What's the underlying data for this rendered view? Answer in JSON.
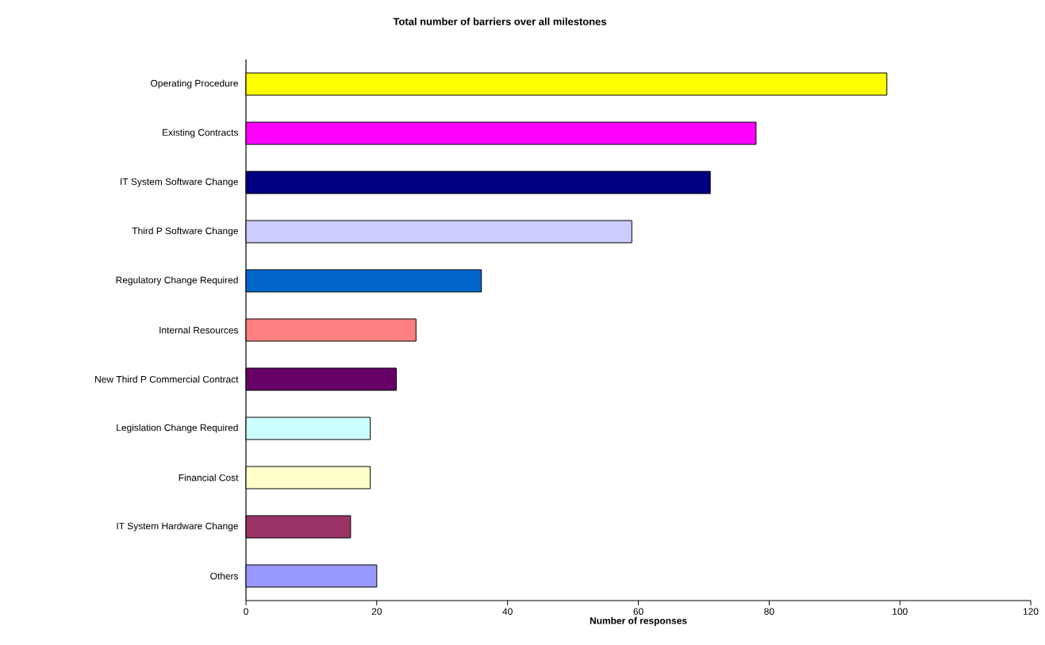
{
  "chart_data": {
    "type": "bar",
    "orientation": "horizontal",
    "title": "Total number of barriers over all milestones",
    "xlabel": "Number of responses",
    "categories": [
      "Operating Procedure",
      "Existing Contracts",
      "IT System Software Change",
      "Third P Software Change",
      "Regulatory Change Required",
      "Internal Resources",
      "New Third P Commercial Contract",
      "Legislation Change Required",
      "Financial Cost",
      "IT System Hardware Change",
      "Others"
    ],
    "values": [
      98,
      78,
      71,
      59,
      36,
      26,
      23,
      19,
      19,
      16,
      20
    ],
    "colors": [
      "#ffff00",
      "#ff00ff",
      "#000080",
      "#ccccff",
      "#0066cc",
      "#ff8080",
      "#660066",
      "#ccffff",
      "#ffffcc",
      "#993366",
      "#9999ff"
    ],
    "xlim": [
      0,
      120
    ],
    "xticks": [
      0,
      20,
      40,
      60,
      80,
      100,
      120
    ]
  }
}
